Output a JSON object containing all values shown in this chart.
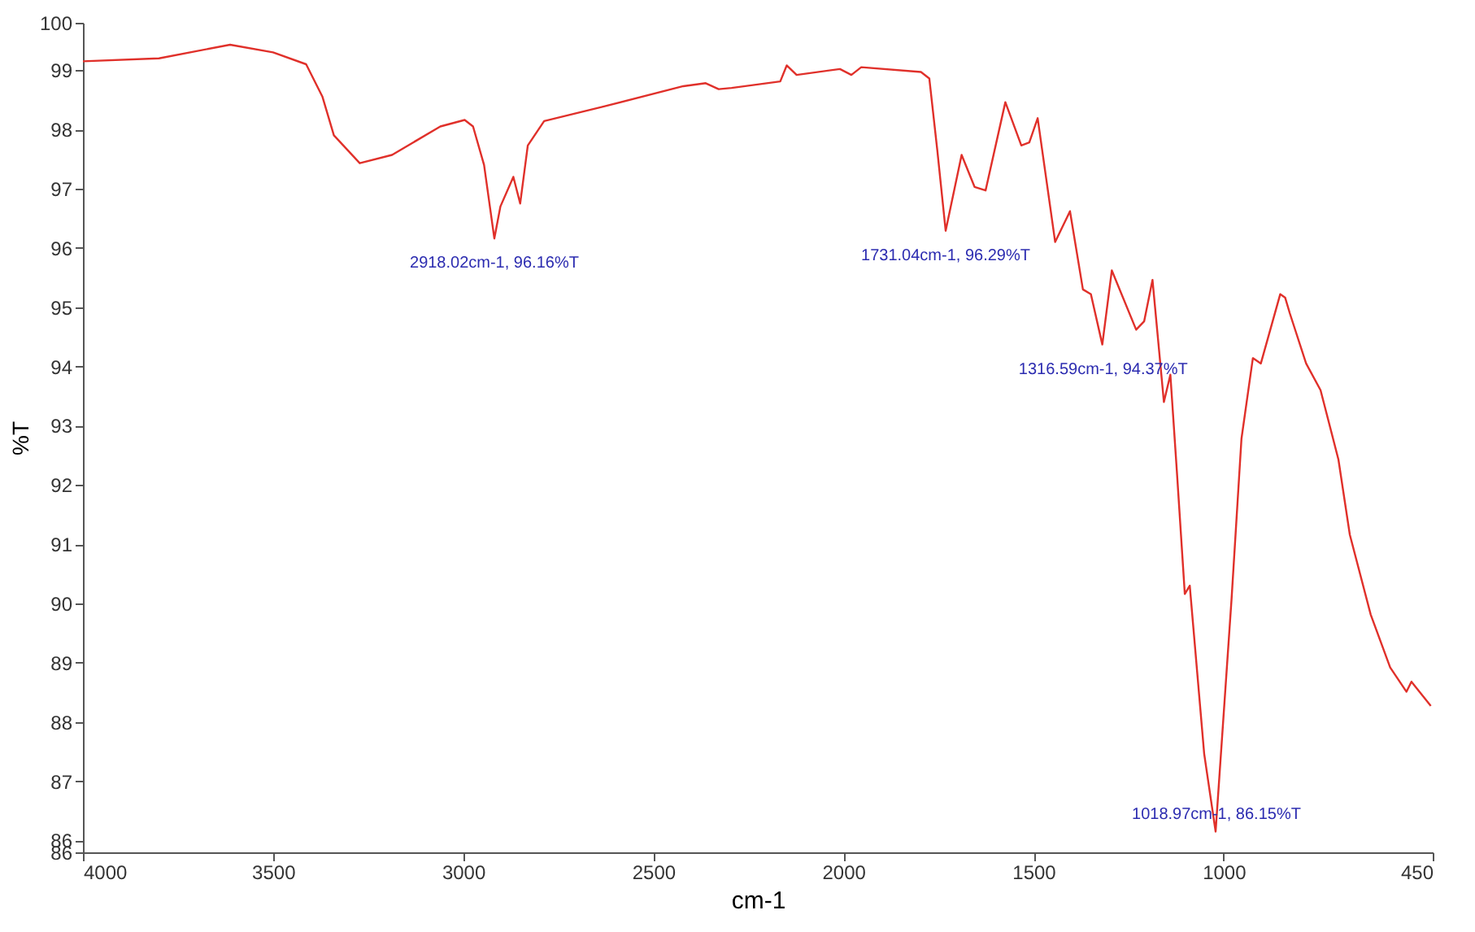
{
  "chart_data": {
    "type": "line",
    "xlabel": "cm-1",
    "ylabel": "%T",
    "xlim": [
      4000,
      450
    ],
    "xticks": [
      4000,
      3500,
      3000,
      2500,
      2000,
      1500,
      1000,
      450
    ],
    "ylim": [
      85.8,
      99.8
    ],
    "yticks": [
      {
        "value": 85.8,
        "label": "86"
      },
      86,
      87,
      88,
      89,
      90,
      91,
      92,
      93,
      94,
      95,
      96,
      97,
      98,
      99,
      {
        "value": 99.8,
        "label": "100"
      }
    ],
    "grid": false,
    "marker": "none",
    "line_style": "solid",
    "series": [
      {
        "color": "#e0302a",
        "x": [
          4000,
          3800,
          3613,
          3500,
          3413,
          3370,
          3340,
          3272,
          3187,
          3060,
          2996,
          2974,
          2945,
          2918,
          2902,
          2868,
          2850,
          2830,
          2787,
          2634,
          2421,
          2362,
          2328,
          2294,
          2166,
          2149,
          2123,
          2009,
          1979,
          1953,
          1796,
          1774,
          1753,
          1731,
          1689,
          1655,
          1626,
          1574,
          1532,
          1511,
          1489,
          1443,
          1404,
          1370,
          1349,
          1319,
          1294,
          1230,
          1209,
          1187,
          1157,
          1140,
          1123,
          1102,
          1089,
          1051,
          1021,
          979,
          953,
          923,
          902,
          851,
          838,
          826,
          783,
          745,
          698,
          668,
          613,
          562,
          519,
          506,
          455
        ],
        "values": [
          99.15,
          99.2,
          99.43,
          99.3,
          99.1,
          98.55,
          97.9,
          97.43,
          97.57,
          98.05,
          98.16,
          98.05,
          97.4,
          96.16,
          96.7,
          97.2,
          96.75,
          97.73,
          98.14,
          98.38,
          98.73,
          98.78,
          98.68,
          98.7,
          98.81,
          99.08,
          98.92,
          99.02,
          98.92,
          99.05,
          98.97,
          98.86,
          97.65,
          96.29,
          97.57,
          97.03,
          96.97,
          98.46,
          97.73,
          97.78,
          98.19,
          96.1,
          96.62,
          95.3,
          95.22,
          94.37,
          95.62,
          94.62,
          94.76,
          95.46,
          93.4,
          93.86,
          92.24,
          90.16,
          90.3,
          87.46,
          86.15,
          90.08,
          92.78,
          94.14,
          94.05,
          95.22,
          95.16,
          94.9,
          94.05,
          93.6,
          92.43,
          91.16,
          89.81,
          88.92,
          88.51,
          88.68,
          88.27
        ]
      }
    ],
    "annotations": [
      {
        "text": "2918.02cm-1, 96.16%T",
        "x": 2918.02,
        "y": 96.16
      },
      {
        "text": "1731.04cm-1, 96.29%T",
        "x": 1731.04,
        "y": 96.29
      },
      {
        "text": "1316.59cm-1, 94.37%T",
        "x": 1316.59,
        "y": 94.37
      },
      {
        "text": "1018.97cm-1, 86.15%T",
        "x": 1018.97,
        "y": 86.15
      }
    ]
  }
}
